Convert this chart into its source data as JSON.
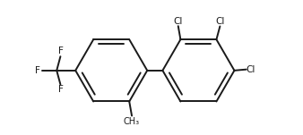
{
  "bg_color": "#ffffff",
  "bond_color": "#1a1a1a",
  "text_color": "#1a1a1a",
  "line_width": 1.4,
  "font_size": 7.5,
  "r": 0.42,
  "ring_sep": 0.18,
  "xlim": [
    -1.55,
    1.85
  ],
  "ylim": [
    -0.75,
    0.82
  ]
}
